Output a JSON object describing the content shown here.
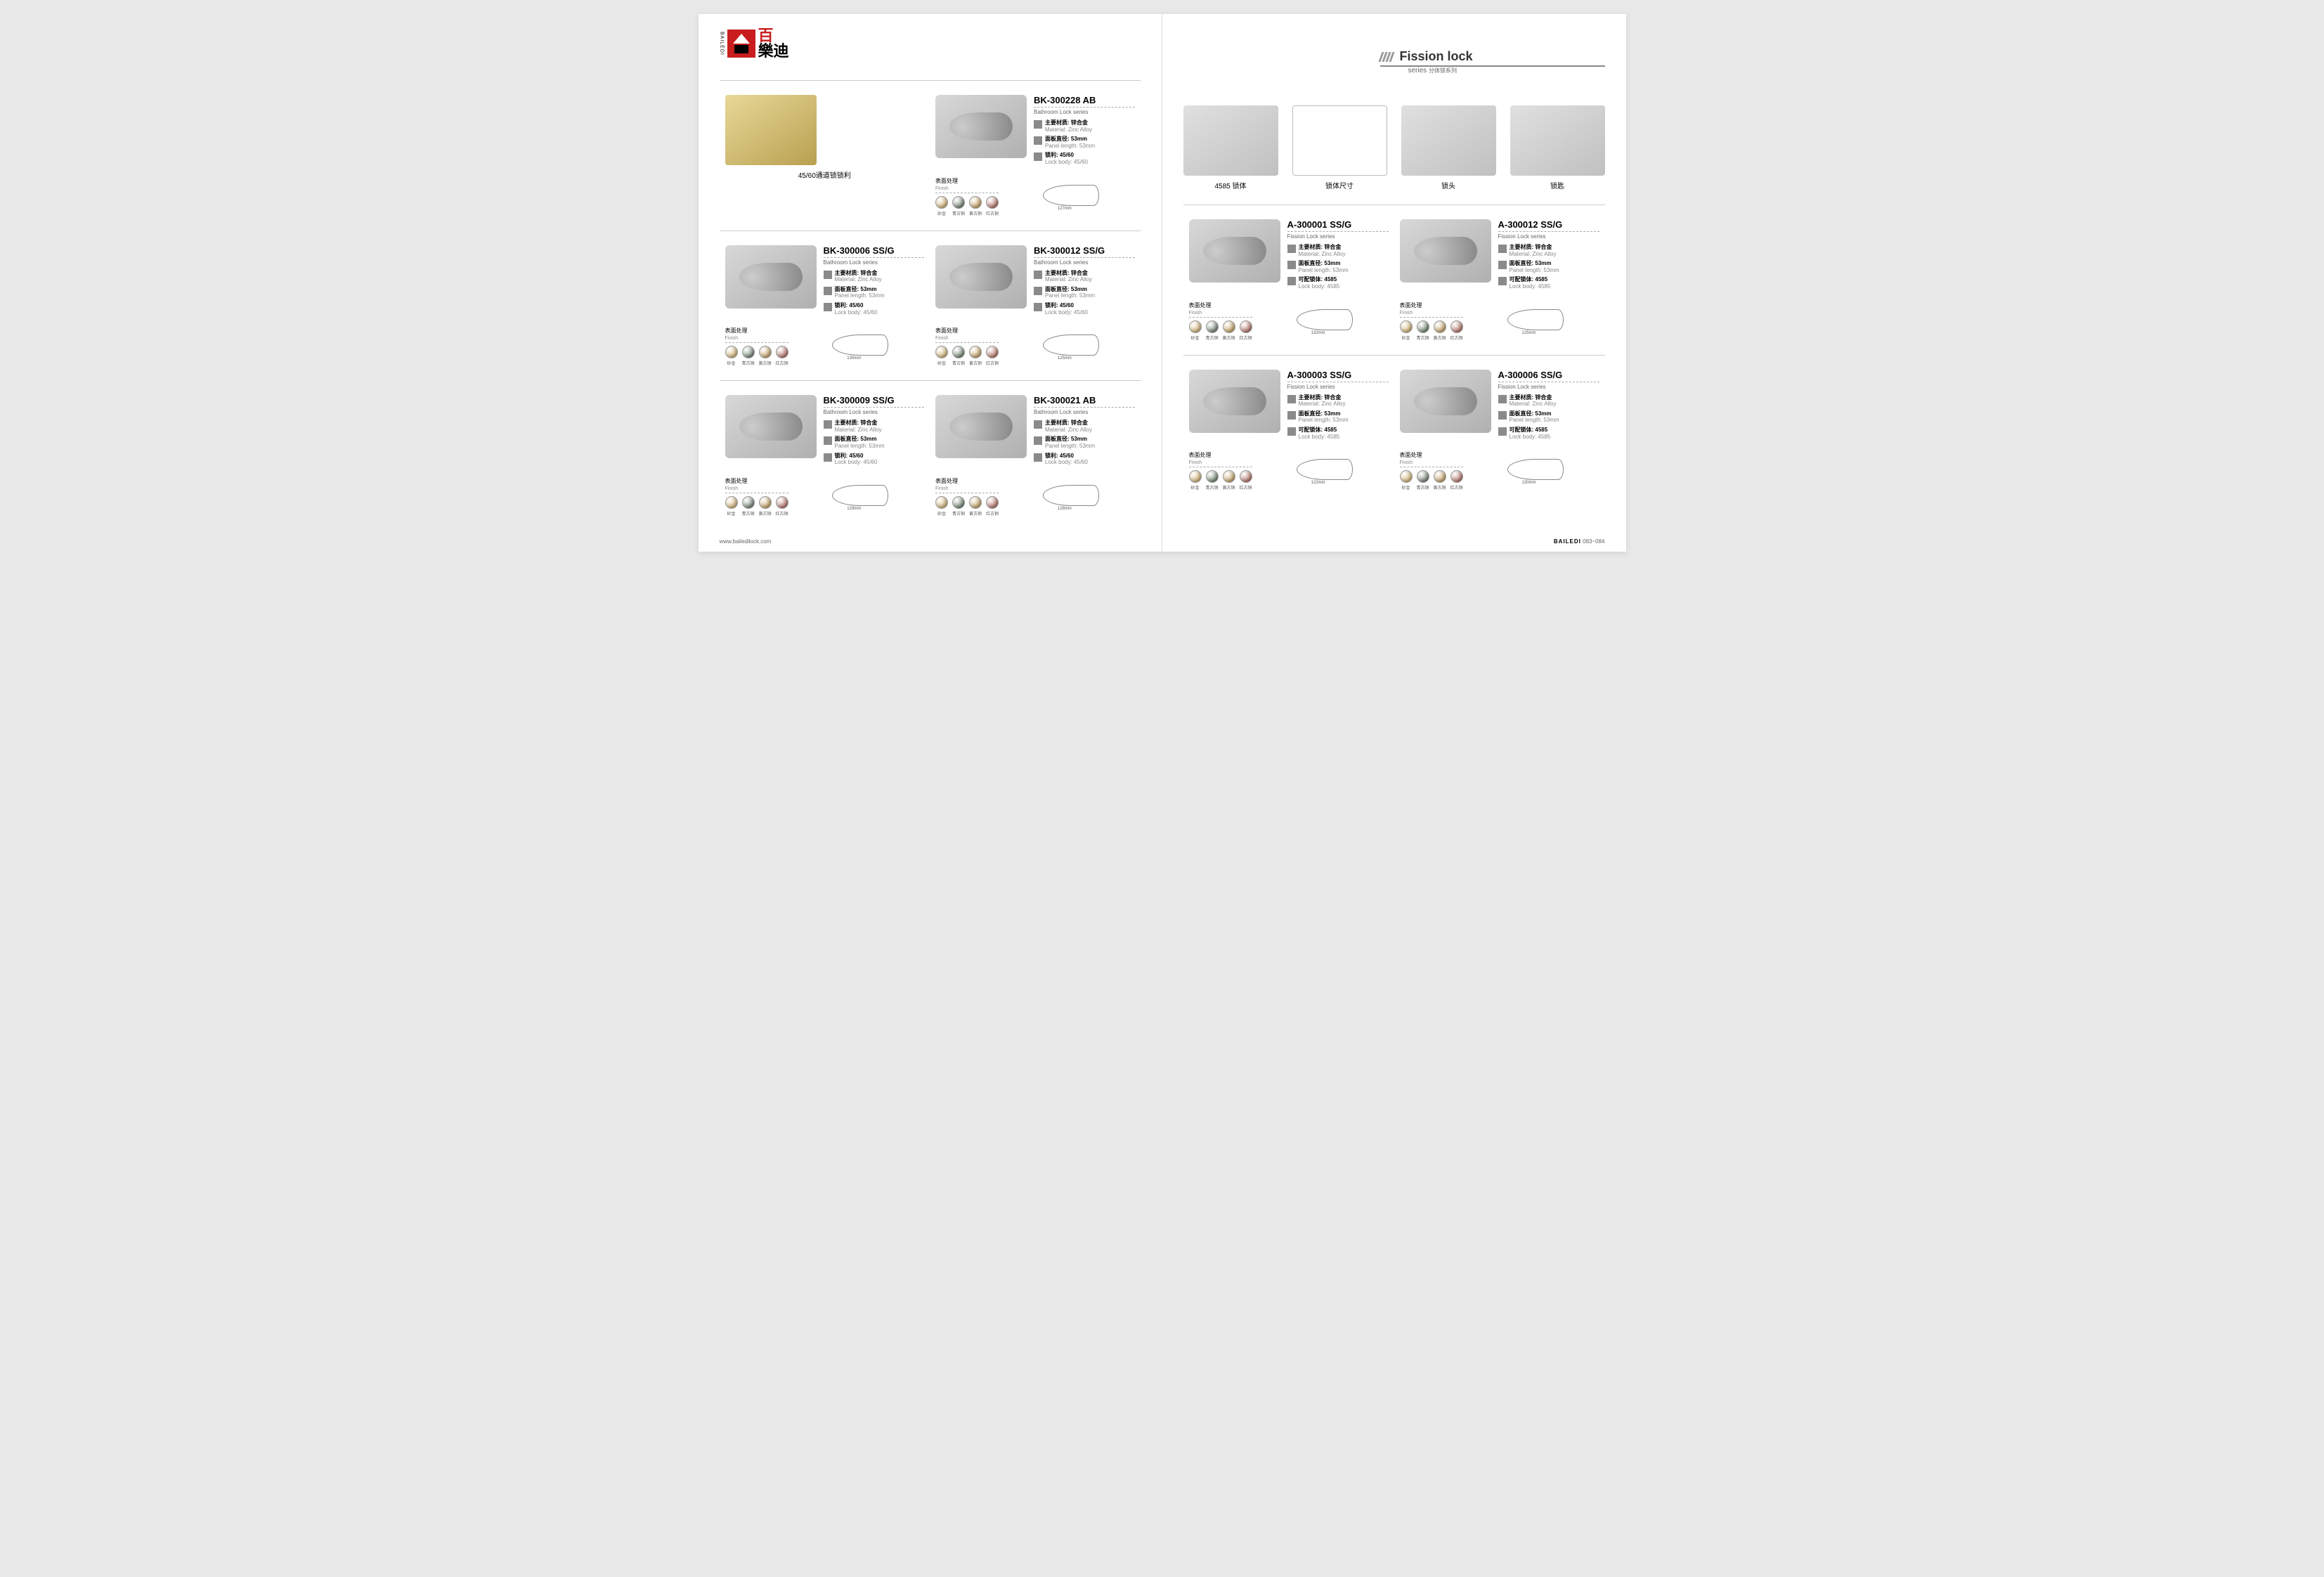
{
  "brand": {
    "side": "BAILEDI",
    "cn1": "百",
    "cn2": "樂迪",
    "url": "www.bailedilock.com",
    "pagenum": "083~084",
    "footer_brand": "BAILEDI"
  },
  "series": {
    "title": "Fission lock",
    "sub": "series",
    "sub_cn": "分体锁系列"
  },
  "latch": {
    "label": "45/60通道锁锁利"
  },
  "finish": {
    "label_cn": "表面处理",
    "label_en": "Finish"
  },
  "swatches": [
    {
      "name": "砂金",
      "color": "#c9a050"
    },
    {
      "name": "青古铜",
      "color": "#4a6048"
    },
    {
      "name": "黄古铜",
      "color": "#b88838"
    },
    {
      "name": "红古铜",
      "color": "#a04838"
    }
  ],
  "spec_labels": {
    "material_cn": "主要材质: 锌合金",
    "material_en": "Material: Zinc Alloy",
    "panel_cn": "面板直径: 53mm",
    "panel_en": "Panel length: 53mm",
    "body_cn": "锁利: 45/60",
    "body_en": "Lock body: 45/60",
    "body2_cn": "可配锁体: 4585",
    "body2_en": "Lock body: 4585"
  },
  "components": [
    {
      "label": "4585 锁体"
    },
    {
      "label": "锁体尺寸"
    },
    {
      "label": "锁头"
    },
    {
      "label": "锁匙"
    }
  ],
  "left_first": {
    "sku": "BK-300228 AB",
    "sub": "Bathroom Lock series",
    "dim": "127mm"
  },
  "left_products": [
    {
      "sku": "BK-300006 SS/G",
      "sub": "Bathroom Lock series",
      "dim": "130mm"
    },
    {
      "sku": "BK-300012 SS/G",
      "sub": "Bathroom Lock series",
      "dim": "125mm"
    },
    {
      "sku": "BK-300009 SS/G",
      "sub": "Bathroom Lock series",
      "dim": "133mm"
    },
    {
      "sku": "BK-300021 AB",
      "sub": "Bathroom Lock series",
      "dim": "128mm"
    }
  ],
  "right_products": [
    {
      "sku": "A-300001 SS/G",
      "sub": "Fission Lock series",
      "dim": "132mm"
    },
    {
      "sku": "A-300012 SS/G",
      "sub": "Fission Lock series",
      "dim": "125mm"
    },
    {
      "sku": "A-300003 SS/G",
      "sub": "Fission Lock series",
      "dim": "122mm"
    },
    {
      "sku": "A-300006 SS/G",
      "sub": "Fission Lock series",
      "dim": "130mm"
    }
  ]
}
